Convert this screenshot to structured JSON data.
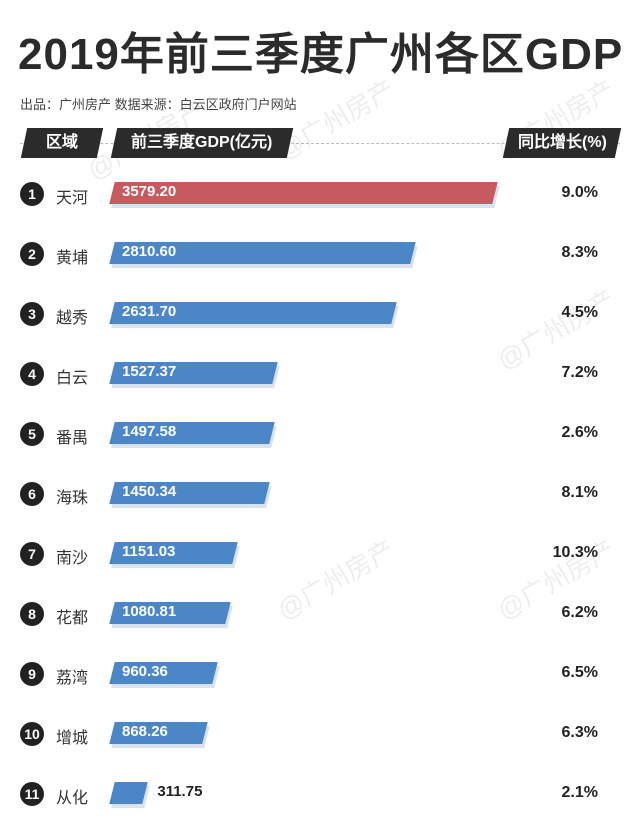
{
  "title": "2019年前三季度广州各区GDP",
  "subtitle": "出品：广州房产  数据来源：白云区政府门户网站",
  "watermark": "@广州房产",
  "headers": {
    "district": "区域",
    "gdp": "前三季度GDP(亿元)",
    "growth": "同比增长(%)"
  },
  "colors": {
    "highlight": "#c65a5e",
    "bar": "#4a86c8",
    "header": "#2b2b2b"
  },
  "chart_data": {
    "type": "bar",
    "orientation": "horizontal",
    "title": "2019年前三季度广州各区GDP",
    "categories": [
      "天河",
      "黄埔",
      "越秀",
      "白云",
      "番禺",
      "海珠",
      "南沙",
      "花都",
      "荔湾",
      "增城",
      "从化"
    ],
    "ranks": [
      "1",
      "2",
      "3",
      "4",
      "5",
      "6",
      "7",
      "8",
      "9",
      "10",
      "11"
    ],
    "values": [
      3579.2,
      2810.6,
      2631.7,
      1527.37,
      1497.58,
      1450.34,
      1151.03,
      1080.81,
      960.36,
      868.26,
      311.75
    ],
    "value_labels": [
      "3579.20",
      "2810.60",
      "2631.70",
      "1527.37",
      "1497.58",
      "1450.34",
      "1151.03",
      "1080.81",
      "960.36",
      "868.26",
      "311.75"
    ],
    "growth_labels": [
      "9.0%",
      "8.3%",
      "4.5%",
      "7.2%",
      "2.6%",
      "8.1%",
      "10.3%",
      "6.2%",
      "6.5%",
      "6.3%",
      "2.1%"
    ],
    "xlim": [
      0,
      3579.2
    ],
    "grid": false
  }
}
